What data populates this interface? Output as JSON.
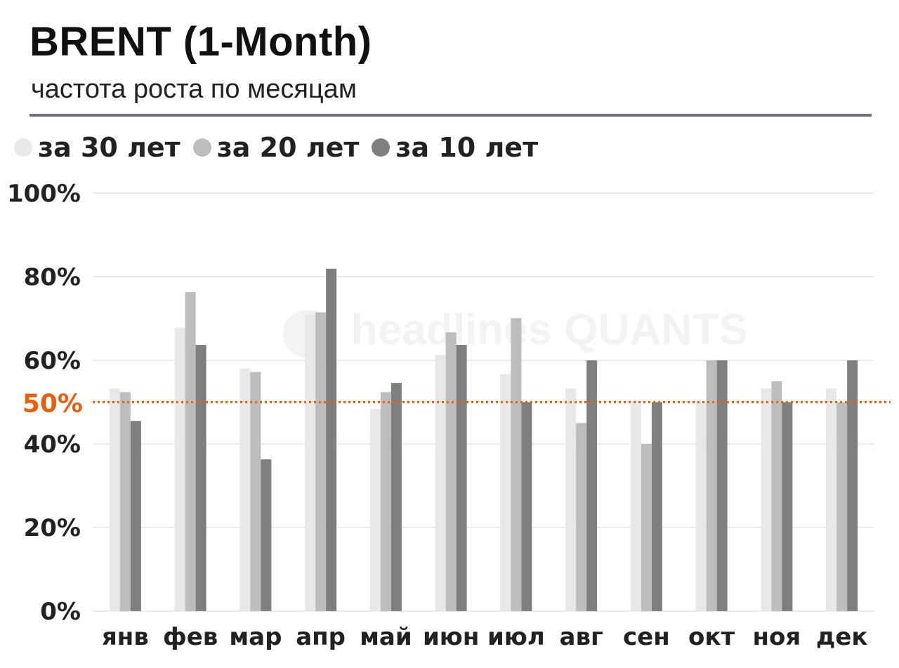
{
  "header": {
    "title": "BRENT (1-Month)",
    "subtitle": "частота роста по месяцам"
  },
  "watermark": "headlines QUANTS",
  "chart_data": {
    "type": "bar",
    "title": "BRENT (1-Month)",
    "subtitle": "частота роста по месяцам",
    "categories": [
      "янв",
      "фев",
      "мар",
      "апр",
      "май",
      "июн",
      "июл",
      "авг",
      "сен",
      "окт",
      "ноя",
      "дек"
    ],
    "series": [
      {
        "name": "за 30 лет",
        "color": "#e8e8e8",
        "values": [
          53.3,
          67.8,
          58.1,
          71.0,
          48.4,
          61.3,
          56.7,
          53.3,
          50.0,
          50.0,
          53.3,
          53.3
        ]
      },
      {
        "name": "за 20 лет",
        "color": "#bdbdbd",
        "values": [
          52.4,
          76.3,
          57.2,
          71.5,
          52.4,
          66.7,
          70.1,
          45.0,
          40.0,
          60.0,
          55.0,
          50.0
        ]
      },
      {
        "name": "за 10 лет",
        "color": "#7f7f7f",
        "values": [
          45.5,
          63.7,
          36.3,
          81.9,
          54.6,
          63.7,
          50.0,
          60.0,
          50.0,
          60.0,
          50.0,
          60.0
        ]
      }
    ],
    "ylim": [
      0,
      100
    ],
    "yticks": [
      "0%",
      "20%",
      "40%",
      "60%",
      "80%",
      "100%"
    ],
    "ytick_values": [
      0,
      20,
      40,
      60,
      80,
      100
    ],
    "reference_line": {
      "value": 50,
      "label": "50%",
      "color": "#e8600f",
      "style": "dotted"
    },
    "grid": true,
    "legend_position": "top-left"
  }
}
